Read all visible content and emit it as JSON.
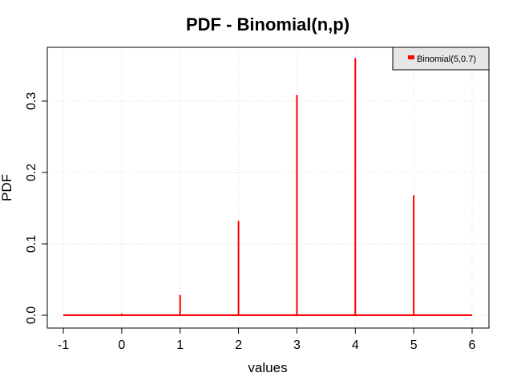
{
  "chart_data": {
    "type": "bar",
    "title": "PDF - Binomial(n,p)",
    "xlabel": "values",
    "ylabel": "PDF",
    "xlim": [
      -1,
      6
    ],
    "ylim": [
      0,
      0.36
    ],
    "xticks": [
      "-1",
      "0",
      "1",
      "2",
      "3",
      "4",
      "5",
      "6"
    ],
    "yticks": [
      "0.0",
      "0.1",
      "0.2",
      "0.3"
    ],
    "grid": true,
    "legend_position": "top-right",
    "series": [
      {
        "name": "Binomial(5,0.7)",
        "color": "#ff0000",
        "x": [
          0,
          1,
          2,
          3,
          4,
          5
        ],
        "values": [
          0.00243,
          0.02835,
          0.1323,
          0.3087,
          0.36015,
          0.16807
        ]
      }
    ]
  }
}
